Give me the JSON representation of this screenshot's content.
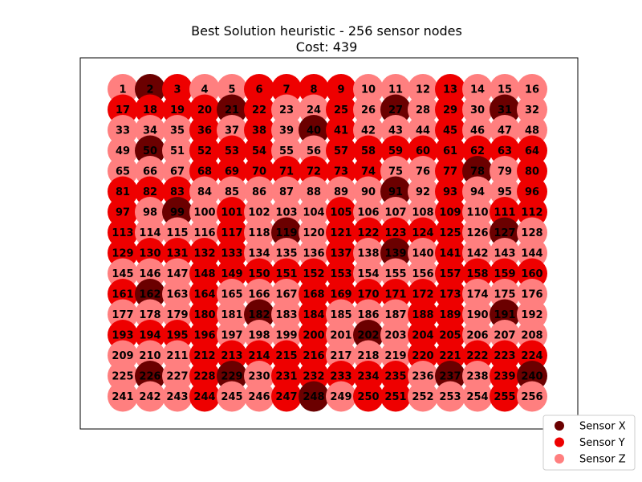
{
  "chart_data": {
    "type": "scatter",
    "title": "Best Solution heuristic - 256 sensor nodes",
    "subtitle": "Cost: 439",
    "grid": false,
    "legend_position": "bottom-right",
    "colors": {
      "X": "#6b0000",
      "Y": "#ee0000",
      "Z": "#ff7f7f"
    },
    "legend": [
      {
        "key": "X",
        "label": "Sensor X"
      },
      {
        "key": "Y",
        "label": "Sensor Y"
      },
      {
        "key": "Z",
        "label": "Sensor Z"
      }
    ],
    "rows": 16,
    "cols": 16,
    "assignments": [
      "ZXYZZYYYYZZZYZZZ",
      "YYYYXYZZYZXZYZXZ",
      "ZZZYZYZXYZZZYZZZ",
      "ZXZYYYZZYYYYYYYY",
      "ZZZYYYYYYYZZYXZY",
      "YYYZZZZZZZXZYZZY",
      "YZXZYZZZYZZZYZYY",
      "YZZZYZXZYYYYYZXZ",
      "YYYYYZZZYZXZYZZZ",
      "ZZZYYYYYYZZZYYYY",
      "YXZYZZZYYYYYYZZZ",
      "ZZZYZXZYZZZYYZXZ",
      "YYYYZZZYZXZYYZZZ",
      "ZZZYYYYYZZZYYYYY",
      "ZXZYXZYYYYYZXZYX",
      "ZZZYZZYXZYYZZZYZ"
    ]
  }
}
